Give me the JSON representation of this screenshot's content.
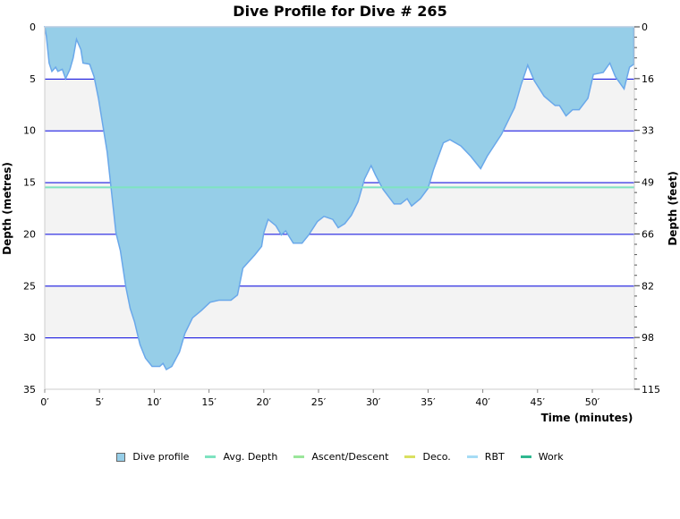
{
  "chart_data": {
    "type": "area",
    "title": "Dive Profile for Dive # 265",
    "xlabel": "Time (minutes)",
    "ylabel": "Depth (metres)",
    "y2label": "Depth (feet)",
    "xlim": [
      0,
      53.8
    ],
    "ylim": [
      0,
      35
    ],
    "y_inverted": true,
    "x_ticks": [
      "0′",
      "5′",
      "10′",
      "15′",
      "20′",
      "25′",
      "30′",
      "35′",
      "40′",
      "45′",
      "50′"
    ],
    "x_tick_values": [
      0,
      5,
      10,
      15,
      20,
      25,
      30,
      35,
      40,
      45,
      50
    ],
    "y_ticks": [
      "0",
      "5",
      "10",
      "15",
      "20",
      "25",
      "30",
      "35"
    ],
    "y_tick_values": [
      0,
      5,
      10,
      15,
      20,
      25,
      30,
      35
    ],
    "y2_ticks": [
      "0",
      "16",
      "33",
      "49",
      "66",
      "82",
      "98",
      "115"
    ],
    "avg_depth": 15.5,
    "series": [
      {
        "name": "Dive profile",
        "x": [
          0,
          0.15,
          0.4,
          0.65,
          1.0,
          1.2,
          1.6,
          1.9,
          2.3,
          2.6,
          2.9,
          3.3,
          3.5,
          4.1,
          4.5,
          4.9,
          5.3,
          5.7,
          6.1,
          6.5,
          6.9,
          7.4,
          7.8,
          8.2,
          8.7,
          9.2,
          9.8,
          10.5,
          10.8,
          11.1,
          11.6,
          12.3,
          12.8,
          13.5,
          14.3,
          15.1,
          15.9,
          17.0,
          17.6,
          18.1,
          19.2,
          19.8,
          20.0,
          20.4,
          21.1,
          21.6,
          22.0,
          22.7,
          23.5,
          24.1,
          24.9,
          25.5,
          26.3,
          26.8,
          27.4,
          28.0,
          28.6,
          29.2,
          29.8,
          30.2,
          30.9,
          31.9,
          32.5,
          33.1,
          33.5,
          34.3,
          35.0,
          35.5,
          36.4,
          37.0,
          38.0,
          38.9,
          39.8,
          40.4,
          41.7,
          42.9,
          43.5,
          44.1,
          44.7,
          45.6,
          46.6,
          47.0,
          47.6,
          48.2,
          48.8,
          49.6,
          50.1,
          51.0,
          51.6,
          52.1,
          52.9,
          53.4,
          53.8,
          53.8
        ],
        "y": [
          0,
          0.9,
          3.5,
          4.3,
          3.9,
          4.3,
          4.1,
          5.0,
          4.1,
          3.0,
          1.2,
          2.2,
          3.5,
          3.6,
          4.8,
          6.9,
          9.5,
          12.1,
          16.0,
          19.9,
          21.6,
          25.1,
          27.2,
          28.5,
          30.7,
          32.0,
          32.8,
          32.8,
          32.5,
          33.1,
          32.8,
          31.4,
          29.6,
          28.1,
          27.4,
          26.6,
          26.4,
          26.4,
          25.9,
          23.3,
          22.0,
          21.2,
          19.9,
          18.6,
          19.2,
          20.1,
          19.7,
          20.9,
          20.9,
          20.1,
          18.8,
          18.3,
          18.6,
          19.4,
          19.0,
          18.2,
          16.9,
          14.7,
          13.4,
          14.3,
          15.7,
          17.1,
          17.1,
          16.6,
          17.3,
          16.6,
          15.6,
          13.8,
          11.2,
          10.9,
          11.5,
          12.5,
          13.7,
          12.5,
          10.4,
          7.8,
          5.6,
          3.7,
          5.2,
          6.7,
          7.6,
          7.6,
          8.6,
          8.0,
          8.0,
          6.9,
          4.6,
          4.4,
          3.5,
          4.8,
          6.0,
          3.9,
          3.6,
          0
        ]
      }
    ],
    "legend": [
      {
        "label": "Dive profile",
        "color": "#96cee8",
        "kind": "box"
      },
      {
        "label": "Avg. Depth",
        "color": "#7ee3c0",
        "kind": "line"
      },
      {
        "label": "Ascent/Descent",
        "color": "#9be69b",
        "kind": "line"
      },
      {
        "label": "Deco.",
        "color": "#d9e060",
        "kind": "line"
      },
      {
        "label": "RBT",
        "color": "#a6dcf5",
        "kind": "line"
      },
      {
        "label": "Work",
        "color": "#2fb88f",
        "kind": "line"
      }
    ],
    "legend_position": "bottom"
  }
}
